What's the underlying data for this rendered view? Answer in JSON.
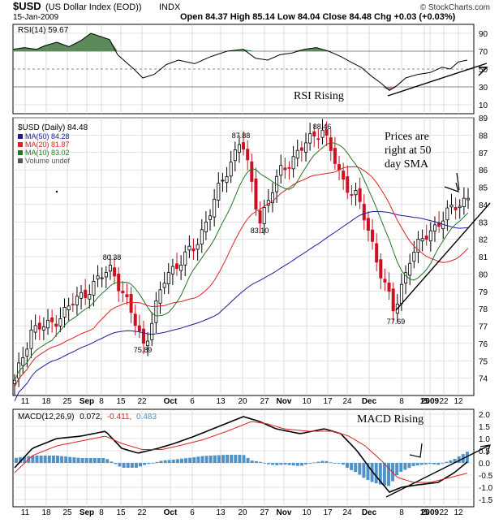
{
  "header": {
    "symbol": "$USD",
    "name": "(US Dollar Index (EOD))",
    "exchange": "INDX",
    "date": "15-Jan-2009",
    "quote": "Open 84.37  High 85.14  Low 84.04  Close 84.48  Chg +0.03 (+0.03%)",
    "brand": "© StockCharts.com"
  },
  "colors": {
    "up": "#000000",
    "down": "#cc1122",
    "ma50": "#1a1a9a",
    "ma20": "#dd2222",
    "ma10": "#227722",
    "rsi_fill": "#5b8a5b",
    "macd_hist": "#4f93c8",
    "grid": "#c8c8c8",
    "frame": "#000000"
  },
  "x_axis_labels": [
    "11",
    "18",
    "25",
    "Sep",
    "8",
    "15",
    "22",
    "Oct",
    "6",
    "13",
    "20",
    "27",
    "Nov",
    "10",
    "17",
    "24",
    "Dec",
    "8",
    "15",
    "22",
    "2009",
    "12"
  ],
  "x_axis_bold": [
    "Sep",
    "Oct",
    "Nov",
    "Dec",
    "2009"
  ],
  "rsi_panel": {
    "legend": "RSI(14) 59.67",
    "y_ticks": [
      10,
      30,
      50,
      70,
      90
    ],
    "annotation": "RSI Rising"
  },
  "price_panel": {
    "legend_title": "$USD (Daily) 84.48",
    "legend_items": [
      {
        "label": "MA(50) 84.28",
        "color": "#1a1a9a"
      },
      {
        "label": "MA(20) 81.87",
        "color": "#dd2222"
      },
      {
        "label": "MA(10) 83.02",
        "color": "#227722"
      },
      {
        "label": "Volume undef",
        "color": "#555555"
      }
    ],
    "y_ticks": [
      74,
      75,
      76,
      77,
      78,
      79,
      80,
      81,
      82,
      83,
      84,
      85,
      86,
      87,
      88,
      89
    ],
    "callouts": [
      "80.38",
      "75.89",
      "87.88",
      "83.10",
      "88.46",
      "77.69"
    ],
    "annotation_lines": [
      "Prices are",
      "right at 50",
      "day SMA"
    ]
  },
  "macd_panel": {
    "legend_prefix": "MACD(12,26,9)",
    "legend_values": [
      "0.072,",
      "-0.411,",
      "0.483"
    ],
    "y_ticks": [
      "2.0",
      "1.5",
      "1.0",
      "0.5",
      "0.0",
      "-0.5",
      "-1.0",
      "-1.5"
    ],
    "annotation": "MACD Rising"
  },
  "chart_data": {
    "type": "candlestick",
    "title": "$USD (US Dollar Index (EOD)) INDX",
    "date": "15-Jan-2009",
    "ohlc_last": {
      "open": 84.37,
      "high": 85.14,
      "low": 84.04,
      "close": 84.48,
      "change": 0.03,
      "change_pct": 0.03
    },
    "price_ylim": [
      73,
      89
    ],
    "price_keypoints": [
      {
        "date": "2008-08-08",
        "close": 73.7
      },
      {
        "date": "2008-08-15",
        "close": 76.8
      },
      {
        "date": "2008-08-25",
        "close": 77.0
      },
      {
        "date": "2008-09-10",
        "close": 80.38
      },
      {
        "date": "2008-09-22",
        "close": 75.89
      },
      {
        "date": "2008-10-06",
        "close": 80.0
      },
      {
        "date": "2008-10-13",
        "close": 81.5
      },
      {
        "date": "2008-10-24",
        "close": 87.88
      },
      {
        "date": "2008-11-04",
        "close": 83.1
      },
      {
        "date": "2008-11-10",
        "close": 86.0
      },
      {
        "date": "2008-11-21",
        "close": 88.46
      },
      {
        "date": "2008-12-01",
        "close": 85.5
      },
      {
        "date": "2008-12-08",
        "close": 84.5
      },
      {
        "date": "2008-12-18",
        "close": 77.69
      },
      {
        "date": "2008-12-29",
        "close": 81.0
      },
      {
        "date": "2009-01-06",
        "close": 83.0
      },
      {
        "date": "2009-01-15",
        "close": 84.48
      }
    ],
    "series": [
      {
        "name": "MA(50)",
        "last": 84.28
      },
      {
        "name": "MA(20)",
        "last": 81.87
      },
      {
        "name": "MA(10)",
        "last": 83.02
      }
    ],
    "rsi": {
      "name": "RSI(14)",
      "last": 59.67,
      "ylim": [
        0,
        100
      ],
      "levels": [
        30,
        70
      ]
    },
    "macd": {
      "name": "MACD(12,26,9)",
      "macd": 0.072,
      "signal": -0.411,
      "histogram": 0.483,
      "ylim": [
        -1.8,
        2.2
      ]
    }
  }
}
